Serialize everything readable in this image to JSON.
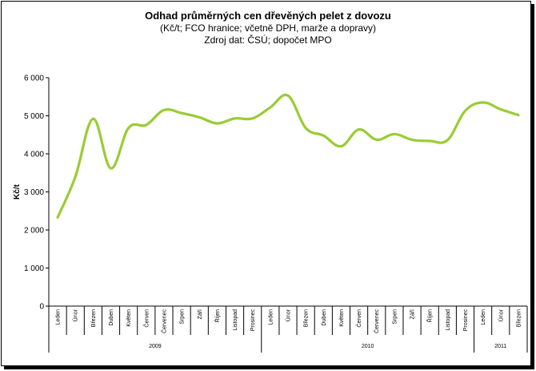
{
  "chart_data": {
    "type": "line",
    "title": "Odhad průměrných cen dřevěných pelet z dovozu",
    "subtitle": "(Kč/t; FCO hranice; včetně DPH, marže a dopravy)",
    "source": "Zdroj dat: ČSÚ; dopočet MPO",
    "ylabel": "Kč/t",
    "ylim": [
      0,
      6000
    ],
    "yticks": [
      "0",
      "1 000",
      "2 000",
      "3 000",
      "4 000",
      "5 000",
      "6 000"
    ],
    "ytick_values": [
      0,
      1000,
      2000,
      3000,
      4000,
      5000,
      6000
    ],
    "categories": [
      "Leden",
      "Únor",
      "Březen",
      "Duben",
      "Květen",
      "Červen",
      "Červenec",
      "Srpen",
      "Září",
      "Říjen",
      "Listopad",
      "Prosinec",
      "Leden",
      "Únor",
      "Březen",
      "Duben",
      "Květen",
      "Červen",
      "Červenec",
      "Srpen",
      "Září",
      "Říjen",
      "Listopad",
      "Prosinec",
      "Leden",
      "Únor",
      "Březen"
    ],
    "groups": [
      {
        "label": "2009",
        "count": 12
      },
      {
        "label": "2010",
        "count": 12
      },
      {
        "label": "2011",
        "count": 3
      }
    ],
    "series": [
      {
        "color": "#99cc33",
        "values": [
          2330,
          3400,
          4920,
          3620,
          4680,
          4760,
          5150,
          5070,
          4960,
          4800,
          4930,
          4930,
          5220,
          5530,
          4680,
          4480,
          4200,
          4640,
          4370,
          4520,
          4370,
          4340,
          4360,
          5130,
          5350,
          5170,
          5020
        ]
      }
    ],
    "grid": false,
    "legend": "none"
  }
}
